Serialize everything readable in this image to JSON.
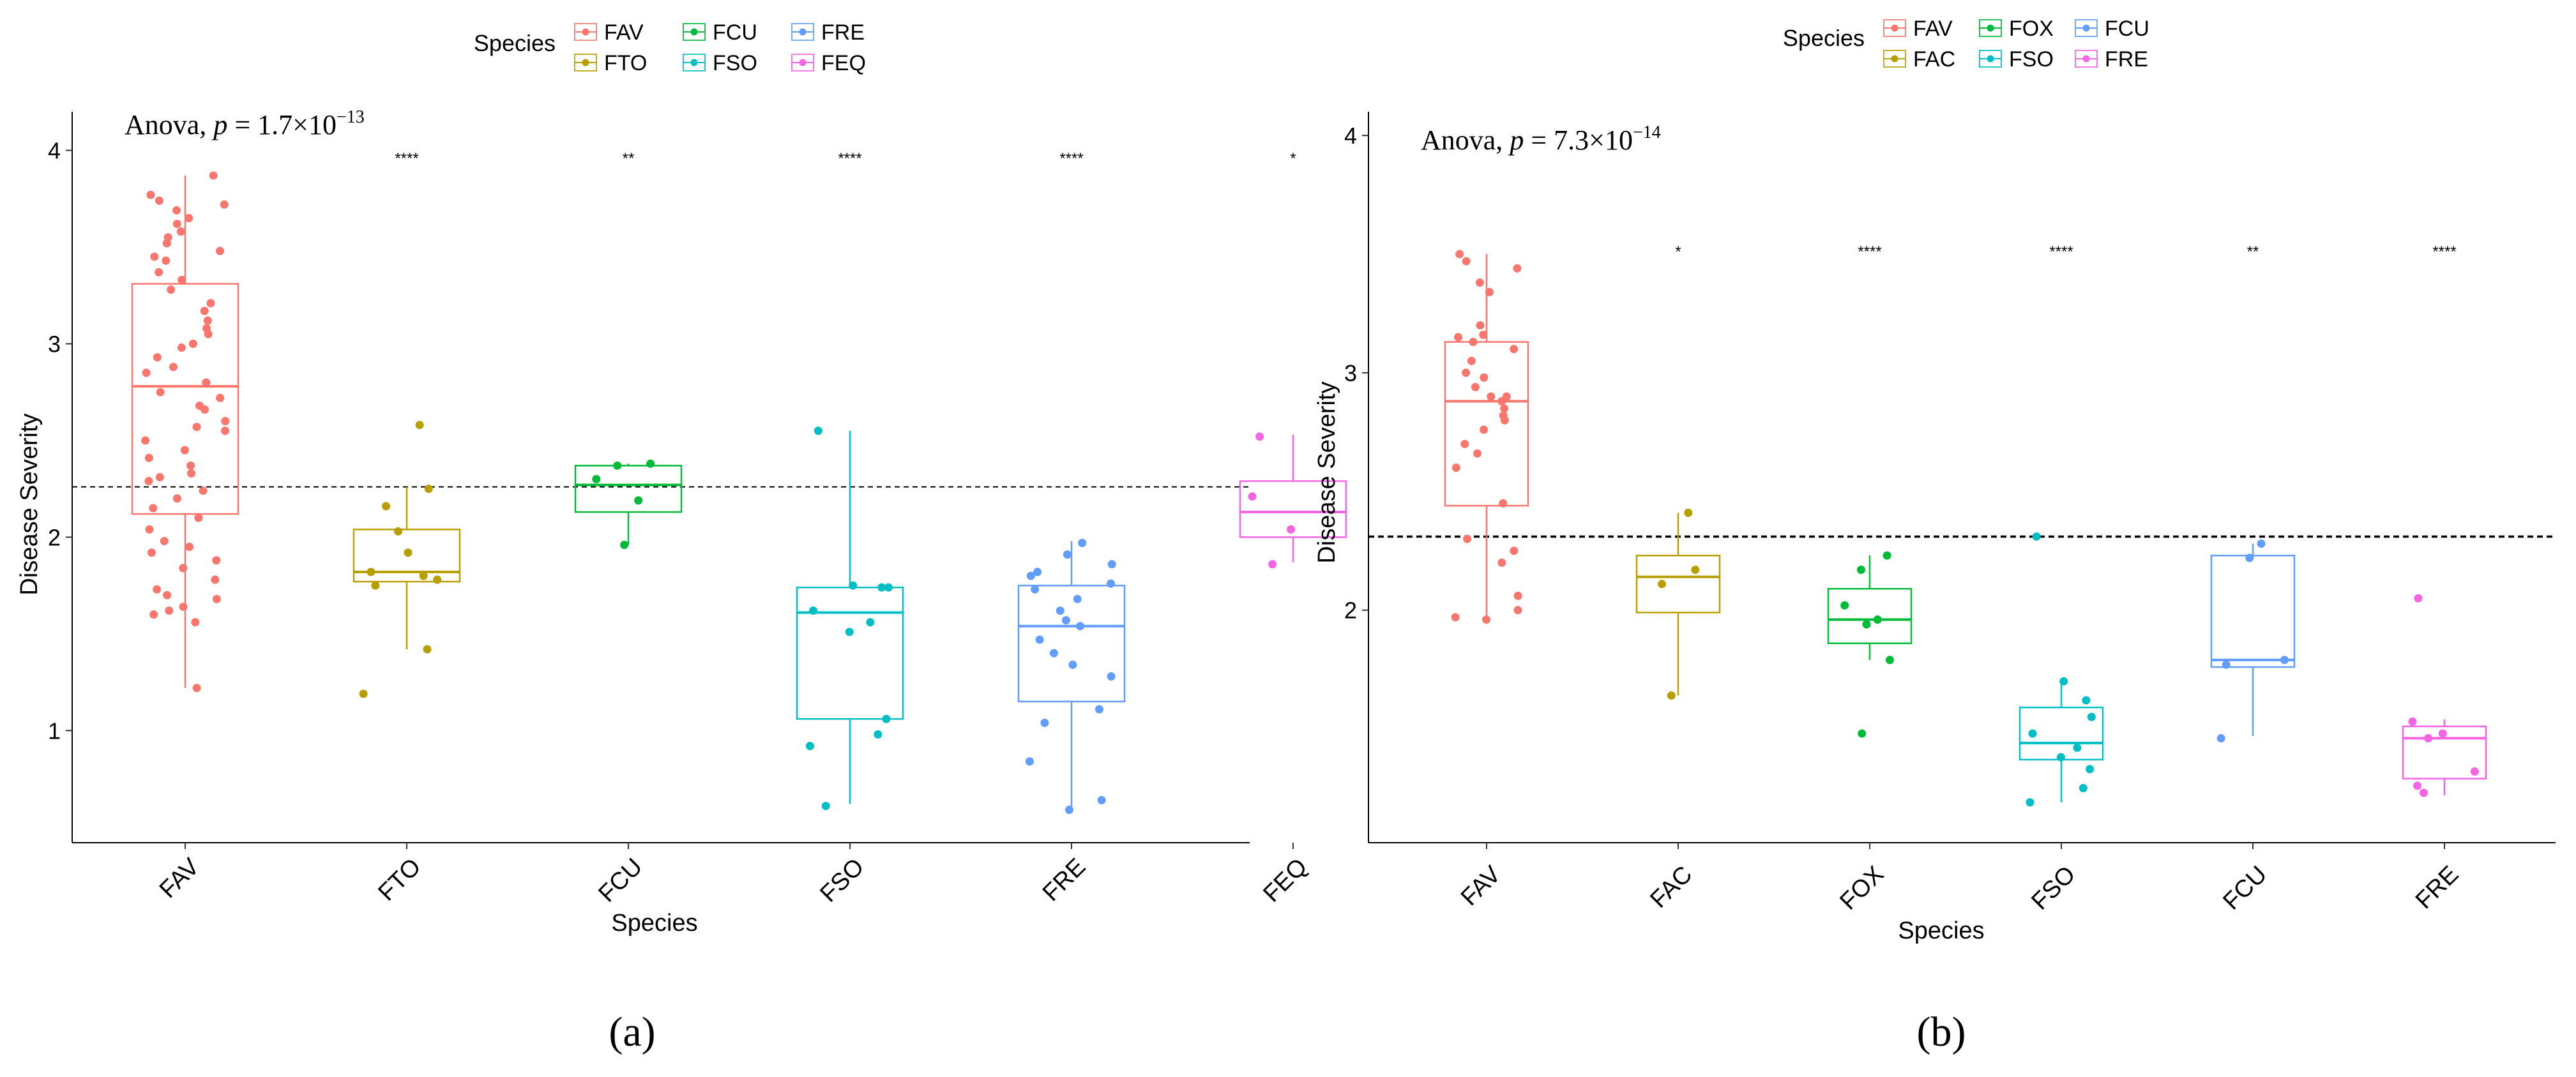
{
  "panels": [
    {
      "caption": "(a)",
      "chart_data": {
        "type": "boxplot-jitter",
        "ylabel": "Disease Severity",
        "xlabel": "Species",
        "ylim": [
          0.42,
          4.2
        ],
        "yticks": [
          1,
          2,
          3,
          4
        ],
        "reference_line": 2.26,
        "anova": {
          "prefix": "Anova, ",
          "p_symbol": "p",
          "mantissa": " = 1.7×10",
          "exponent": "−13"
        },
        "legend": {
          "title": "Species",
          "position": "top-center",
          "entries": [
            "FAV",
            "FCU",
            "FRE",
            "FTO",
            "FSO",
            "FEQ"
          ]
        },
        "groups": [
          {
            "name": "FAV",
            "color": "#F8766D",
            "q1": 2.12,
            "median": 2.78,
            "q3": 3.31,
            "whisker_low": 1.22,
            "whisker_high": 3.87,
            "signif": "",
            "points": [
              3.77,
              3.74,
              3.72,
              3.69,
              3.65,
              3.62,
              3.58,
              3.55,
              3.48,
              3.43,
              3.37,
              3.33,
              3.28,
              3.21,
              3.17,
              3.12,
              3.08,
              3.05,
              2.98,
              2.93,
              2.88,
              2.85,
              2.8,
              2.75,
              2.72,
              2.66,
              2.6,
              2.55,
              2.5,
              2.45,
              2.41,
              2.37,
              2.33,
              2.29,
              2.24,
              2.2,
              2.15,
              2.1,
              2.04,
              1.98,
              1.92,
              1.88,
              1.84,
              1.78,
              1.73,
              1.68,
              1.64,
              1.6,
              1.56,
              1.22,
              3.87,
              3.52,
              3.45,
              3.0,
              2.68,
              2.57,
              2.31,
              1.95,
              1.7,
              1.62
            ]
          },
          {
            "name": "FTO",
            "color": "#B79F00",
            "q1": 1.77,
            "median": 1.82,
            "q3": 2.04,
            "whisker_low": 1.42,
            "whisker_high": 2.26,
            "signif": "****",
            "points": [
              2.58,
              2.25,
              2.16,
              2.03,
              1.92,
              1.82,
              1.8,
              1.78,
              1.75,
              1.42,
              1.19
            ]
          },
          {
            "name": "FCU",
            "color": "#00BA38",
            "q1": 2.13,
            "median": 2.27,
            "q3": 2.37,
            "whisker_low": 1.96,
            "whisker_high": 2.38,
            "signif": "**",
            "points": [
              2.38,
              2.37,
              2.3,
              2.19,
              1.96
            ]
          },
          {
            "name": "FSO",
            "color": "#00BFC4",
            "q1": 1.06,
            "median": 1.61,
            "q3": 1.74,
            "whisker_low": 0.62,
            "whisker_high": 2.55,
            "signif": "****",
            "points": [
              2.55,
              1.75,
              1.74,
              1.74,
              1.62,
              1.56,
              1.51,
              1.06,
              0.98,
              0.92,
              0.61
            ]
          },
          {
            "name": "FRE",
            "color": "#619CFF",
            "q1": 1.15,
            "median": 1.54,
            "q3": 1.75,
            "whisker_low": 0.59,
            "whisker_high": 1.98,
            "signif": "****",
            "points": [
              1.97,
              1.91,
              1.86,
              1.82,
              1.8,
              1.76,
              1.73,
              1.68,
              1.62,
              1.57,
              1.54,
              1.47,
              1.4,
              1.34,
              1.28,
              1.11,
              1.04,
              0.84,
              0.64,
              0.59
            ]
          },
          {
            "name": "FEQ",
            "color": "#F564E3",
            "q1": 2.0,
            "median": 2.13,
            "q3": 2.29,
            "whisker_low": 1.87,
            "whisker_high": 2.53,
            "signif": "*",
            "points": [
              2.52,
              2.21,
              2.04,
              1.86
            ]
          }
        ]
      }
    },
    {
      "caption": "(b)",
      "chart_data": {
        "type": "boxplot-jitter",
        "ylabel": "Disease Severity",
        "xlabel": "Species",
        "ylim": [
          1.02,
          4.1
        ],
        "yticks": [
          2,
          3,
          4
        ],
        "reference_line": 2.31,
        "anova": {
          "prefix": "Anova, ",
          "p_symbol": "p",
          "mantissa": " = 7.3×10",
          "exponent": "−14"
        },
        "legend": {
          "title": "Species",
          "position": "top-center",
          "entries": [
            "FAV",
            "FOX",
            "FCU",
            "FAC",
            "FSO",
            "FRE"
          ]
        },
        "groups": [
          {
            "name": "FAV",
            "color": "#F8766D",
            "q1": 2.44,
            "median": 2.88,
            "q3": 3.13,
            "whisker_low": 1.96,
            "whisker_high": 3.5,
            "signif": "",
            "points": [
              3.5,
              3.47,
              3.44,
              3.38,
              3.34,
              3.2,
              3.16,
              3.13,
              3.1,
              3.05,
              3.0,
              2.98,
              2.94,
              2.9,
              2.88,
              2.85,
              2.82,
              2.8,
              2.76,
              2.7,
              2.66,
              2.6,
              2.45,
              2.3,
              2.25,
              2.2,
              2.06,
              2.0,
              1.97,
              1.96,
              3.15,
              2.9
            ]
          },
          {
            "name": "FAC",
            "color": "#B79F00",
            "q1": 1.99,
            "median": 2.14,
            "q3": 2.23,
            "whisker_low": 1.64,
            "whisker_high": 2.41,
            "signif": "*",
            "points": [
              2.41,
              2.17,
              2.11,
              1.64
            ]
          },
          {
            "name": "FOX",
            "color": "#00BA38",
            "q1": 1.86,
            "median": 1.96,
            "q3": 2.09,
            "whisker_low": 1.79,
            "whisker_high": 2.23,
            "signif": "****",
            "points": [
              2.23,
              2.17,
              2.02,
              1.96,
              1.94,
              1.79,
              1.48
            ]
          },
          {
            "name": "FSO",
            "color": "#00BFC4",
            "q1": 1.37,
            "median": 1.44,
            "q3": 1.59,
            "whisker_low": 1.19,
            "whisker_high": 1.7,
            "signif": "****",
            "points": [
              2.31,
              1.7,
              1.62,
              1.55,
              1.48,
              1.42,
              1.38,
              1.33,
              1.25,
              1.19
            ]
          },
          {
            "name": "FCU",
            "color": "#619CFF",
            "q1": 1.76,
            "median": 1.79,
            "q3": 2.23,
            "whisker_low": 1.47,
            "whisker_high": 2.28,
            "signif": "**",
            "points": [
              2.28,
              2.22,
              1.79,
              1.77,
              1.46
            ]
          },
          {
            "name": "FRE",
            "color": "#F564E3",
            "q1": 1.29,
            "median": 1.46,
            "q3": 1.51,
            "whisker_low": 1.22,
            "whisker_high": 1.54,
            "signif": "****",
            "points": [
              2.05,
              1.53,
              1.48,
              1.46,
              1.32,
              1.26,
              1.23
            ]
          }
        ]
      }
    }
  ]
}
